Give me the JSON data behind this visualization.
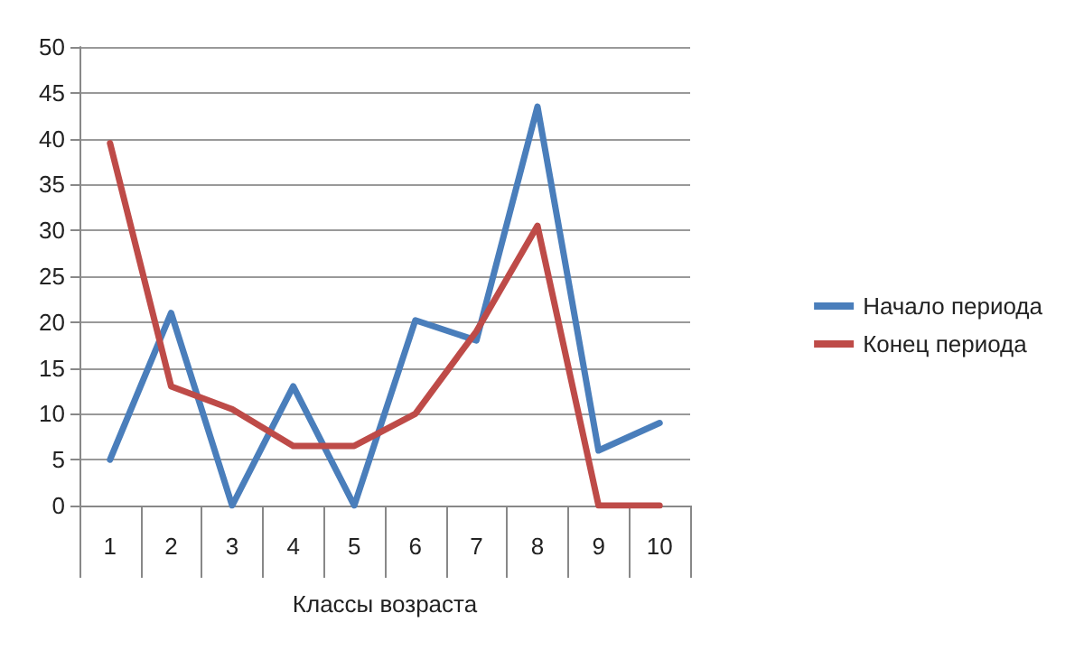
{
  "chart_data": {
    "type": "line",
    "xlabel": "Классы возраста",
    "categories": [
      "1",
      "2",
      "3",
      "4",
      "5",
      "6",
      "7",
      "8",
      "9",
      "10"
    ],
    "series": [
      {
        "name": "Начало периода",
        "color": "#4a7ebb",
        "values": [
          5,
          21,
          0,
          13,
          0,
          20.2,
          18,
          43.5,
          6,
          9
        ]
      },
      {
        "name": "Конец периода",
        "color": "#be4b48",
        "values": [
          39.5,
          13,
          10.5,
          6.5,
          6.5,
          10,
          19,
          30.5,
          0,
          0
        ]
      }
    ],
    "ylim": [
      0,
      50
    ],
    "yticks": [
      0,
      5,
      10,
      15,
      20,
      25,
      30,
      35,
      40,
      45,
      50
    ],
    "grid": "y",
    "legend": "right",
    "marker": "none",
    "line_style": "solid"
  }
}
